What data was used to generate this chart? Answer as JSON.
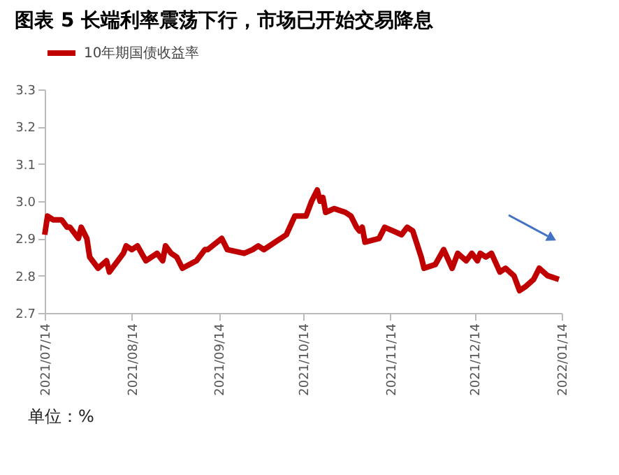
{
  "chart_data": {
    "type": "line",
    "title": "图表 5 长端利率震荡下行，市场已开始交易降息",
    "annotations": [
      "单位：%"
    ],
    "x": [
      "2021-07-14",
      "2021-07-15",
      "2021-07-17",
      "2021-07-20",
      "2021-07-22",
      "2021-07-23",
      "2021-07-26",
      "2021-07-27",
      "2021-07-29",
      "2021-07-30",
      "2021-08-02",
      "2021-08-05",
      "2021-08-06",
      "2021-08-09",
      "2021-08-11",
      "2021-08-12",
      "2021-08-14",
      "2021-08-16",
      "2021-08-19",
      "2021-08-23",
      "2021-08-25",
      "2021-08-26",
      "2021-08-28",
      "2021-08-30",
      "2021-09-01",
      "2021-09-06",
      "2021-09-09",
      "2021-09-10",
      "2021-09-15",
      "2021-09-17",
      "2021-09-23",
      "2021-09-26",
      "2021-09-28",
      "2021-09-30",
      "2021-10-04",
      "2021-10-08",
      "2021-10-11",
      "2021-10-14",
      "2021-10-15",
      "2021-10-17",
      "2021-10-19",
      "2021-10-20",
      "2021-10-21",
      "2021-10-22",
      "2021-10-25",
      "2021-10-29",
      "2021-10-31",
      "2021-11-02",
      "2021-11-03",
      "2021-11-04",
      "2021-11-05",
      "2021-11-10",
      "2021-11-12",
      "2021-11-15",
      "2021-11-18",
      "2021-11-20",
      "2021-11-22",
      "2021-11-25",
      "2021-11-26",
      "2021-11-30",
      "2021-12-03",
      "2021-12-06",
      "2021-12-08",
      "2021-12-11",
      "2021-12-13",
      "2021-12-15",
      "2021-12-16",
      "2021-12-18",
      "2021-12-20",
      "2021-12-23",
      "2021-12-25",
      "2021-12-28",
      "2021-12-30",
      "2022-01-01",
      "2022-01-04",
      "2022-01-06",
      "2022-01-09",
      "2022-01-13"
    ],
    "series": [
      {
        "name": "10年期国债收益率",
        "color": "#c00000",
        "values": [
          2.91,
          2.96,
          2.95,
          2.95,
          2.93,
          2.93,
          2.9,
          2.93,
          2.9,
          2.85,
          2.82,
          2.84,
          2.81,
          2.84,
          2.86,
          2.88,
          2.87,
          2.88,
          2.84,
          2.86,
          2.84,
          2.88,
          2.86,
          2.85,
          2.82,
          2.84,
          2.87,
          2.87,
          2.9,
          2.87,
          2.86,
          2.87,
          2.88,
          2.87,
          2.89,
          2.91,
          2.96,
          2.96,
          2.96,
          3.0,
          3.03,
          3.0,
          3.01,
          2.97,
          2.98,
          2.97,
          2.96,
          2.93,
          2.92,
          2.93,
          2.89,
          2.9,
          2.93,
          2.92,
          2.91,
          2.93,
          2.92,
          2.85,
          2.82,
          2.83,
          2.87,
          2.82,
          2.86,
          2.84,
          2.86,
          2.84,
          2.86,
          2.85,
          2.86,
          2.81,
          2.82,
          2.8,
          2.76,
          2.77,
          2.79,
          2.82,
          2.8,
          2.79
        ]
      }
    ],
    "xlim": [
      "2021-07-14",
      "2022-01-14"
    ],
    "xticks": [
      {
        "value": "2021-07-14",
        "label": "2021/07/14"
      },
      {
        "value": "2021-08-14",
        "label": "2021/08/14"
      },
      {
        "value": "2021-09-14",
        "label": "2021/09/14"
      },
      {
        "value": "2021-10-14",
        "label": "2021/10/14"
      },
      {
        "value": "2021-11-14",
        "label": "2021/11/14"
      },
      {
        "value": "2021-12-14",
        "label": "2021/12/14"
      },
      {
        "value": "2022-01-14",
        "label": "2022/01/14"
      }
    ],
    "ylim": [
      2.7,
      3.3
    ],
    "yticks": [
      2.7,
      2.8,
      2.9,
      {
        "value": 3.0,
        "label": "3.0"
      },
      3.1,
      3.2,
      3.3
    ],
    "grid": false,
    "legend": "top",
    "marker": "none",
    "line_style": "solid"
  }
}
